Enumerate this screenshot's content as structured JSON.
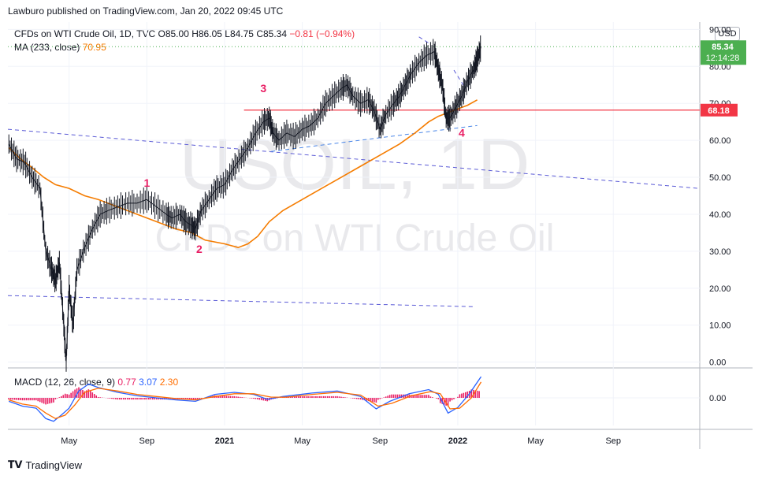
{
  "header": {
    "published": "Lawburo published on TradingView.com, Jan 20, 2022 09:45 UTC"
  },
  "legend": {
    "symbol": "CFDs on WTI Crude Oil, 1D, TVC",
    "o": "O85.00",
    "h": "H86.05",
    "l": "L84.75",
    "c": "C85.34",
    "change": "−0.81 (−0.94%)",
    "ma_label": "MA (233, close)",
    "ma_value": "70.95",
    "macd_label": "MACD (12, 26, close, 9)",
    "macd_v1": "0.77",
    "macd_v2": "3.07",
    "macd_v3": "2.30"
  },
  "currency": "USD",
  "footer": {
    "brand": "TradingView"
  },
  "colors": {
    "price": "#131722",
    "ma": "#f57c00",
    "hline": "#f23645",
    "trend": "#5a5ad6",
    "macd": "#2962ff",
    "signal": "#ff6d00",
    "hist": "#e91e63",
    "last": "#4caf50"
  },
  "chart_data": {
    "type": "line",
    "watermark": [
      "USOIL, 1D",
      "CFDs on WTI Crude Oil"
    ],
    "y_ticks": [
      "90.00",
      "80.00",
      "70.00",
      "60.00",
      "50.00",
      "40.00",
      "30.00",
      "20.00",
      "10.00",
      "0.00"
    ],
    "ylim": [
      -0.5,
      92
    ],
    "x_ticks": [
      "May",
      "Sep",
      "2021",
      "May",
      "Sep",
      "2022",
      "May",
      "Sep"
    ],
    "x_tick_months": [
      4,
      8,
      12,
      16,
      20,
      24,
      28,
      32
    ],
    "xlim": [
      0.85,
      36.45
    ],
    "last_price": {
      "value": 85.34,
      "label": "85.34",
      "countdown": "12:14:28"
    },
    "hline": {
      "value": 68.18,
      "label": "68.18"
    },
    "price_series": [
      [
        0.9,
        59
      ],
      [
        1.3,
        55
      ],
      [
        1.7,
        54
      ],
      [
        2.1,
        50
      ],
      [
        2.5,
        47
      ],
      [
        2.8,
        30
      ],
      [
        3.1,
        25
      ],
      [
        3.3,
        22
      ],
      [
        3.5,
        27
      ],
      [
        3.7,
        12
      ],
      [
        3.85,
        0
      ],
      [
        4.0,
        20
      ],
      [
        4.2,
        10
      ],
      [
        4.4,
        25
      ],
      [
        4.8,
        31
      ],
      [
        5.2,
        36
      ],
      [
        5.6,
        40
      ],
      [
        6.0,
        41
      ],
      [
        6.5,
        42
      ],
      [
        7.0,
        43
      ],
      [
        7.5,
        43
      ],
      [
        8.0,
        44
      ],
      [
        8.5,
        42
      ],
      [
        9.0,
        40
      ],
      [
        9.3,
        39
      ],
      [
        9.7,
        40
      ],
      [
        10.0,
        38
      ],
      [
        10.3,
        37
      ],
      [
        10.5,
        36
      ],
      [
        10.8,
        41
      ],
      [
        11.2,
        44
      ],
      [
        11.6,
        47
      ],
      [
        12.0,
        48
      ],
      [
        12.4,
        52
      ],
      [
        12.8,
        55
      ],
      [
        13.2,
        58
      ],
      [
        13.6,
        62
      ],
      [
        14.0,
        65
      ],
      [
        14.3,
        66
      ],
      [
        14.5,
        62
      ],
      [
        14.8,
        60
      ],
      [
        15.2,
        62
      ],
      [
        15.6,
        61
      ],
      [
        16.0,
        63
      ],
      [
        16.4,
        64
      ],
      [
        16.8,
        66
      ],
      [
        17.2,
        70
      ],
      [
        17.6,
        72
      ],
      [
        18.0,
        74
      ],
      [
        18.3,
        75
      ],
      [
        18.6,
        72
      ],
      [
        19.0,
        70
      ],
      [
        19.4,
        71
      ],
      [
        19.7,
        68
      ],
      [
        20.0,
        63
      ],
      [
        20.3,
        67
      ],
      [
        20.7,
        70
      ],
      [
        21.0,
        72
      ],
      [
        21.3,
        75
      ],
      [
        21.6,
        78
      ],
      [
        22.0,
        81
      ],
      [
        22.4,
        83
      ],
      [
        22.8,
        84
      ],
      [
        23.0,
        79
      ],
      [
        23.2,
        75
      ],
      [
        23.4,
        66
      ],
      [
        23.6,
        66
      ],
      [
        23.9,
        69
      ],
      [
        24.2,
        72
      ],
      [
        24.5,
        76
      ],
      [
        24.8,
        79
      ],
      [
        25.0,
        82
      ],
      [
        25.2,
        85.34
      ]
    ],
    "ma_series": [
      [
        0.9,
        58
      ],
      [
        1.5,
        55
      ],
      [
        2.0,
        53
      ],
      [
        2.7,
        50
      ],
      [
        3.3,
        48
      ],
      [
        4.0,
        47
      ],
      [
        4.8,
        45
      ],
      [
        5.5,
        44
      ],
      [
        6.5,
        42
      ],
      [
        7.5,
        40
      ],
      [
        8.5,
        38
      ],
      [
        9.5,
        36
      ],
      [
        10.3,
        35
      ],
      [
        11.0,
        33
      ],
      [
        12.0,
        32
      ],
      [
        12.7,
        31
      ],
      [
        13.2,
        32
      ],
      [
        13.7,
        34
      ],
      [
        14.3,
        38
      ],
      [
        15.0,
        41
      ],
      [
        16.0,
        44
      ],
      [
        17.0,
        47
      ],
      [
        18.0,
        50
      ],
      [
        19.0,
        53
      ],
      [
        20.0,
        56
      ],
      [
        21.0,
        59
      ],
      [
        21.8,
        62
      ],
      [
        22.5,
        65
      ],
      [
        23.0,
        66.5
      ],
      [
        23.5,
        67.5
      ],
      [
        24.0,
        68.5
      ],
      [
        24.5,
        69.5
      ],
      [
        25.0,
        70.95
      ]
    ],
    "trend_lines": [
      {
        "from": [
          0.85,
          63
        ],
        "to": [
          36.4,
          47
        ]
      },
      {
        "from": [
          0.85,
          18
        ],
        "to": [
          24.8,
          15
        ]
      },
      {
        "from": [
          14.4,
          57
        ],
        "to": [
          25.0,
          64
        ]
      },
      {
        "from": [
          22.0,
          88
        ],
        "to": [
          22.6,
          86
        ]
      },
      {
        "from": [
          23.8,
          79
        ],
        "to": [
          24.4,
          74
        ]
      }
    ],
    "hline_range": [
      13.0,
      36.45
    ],
    "wave_labels": [
      {
        "text": "1",
        "x": 8.0,
        "y": 47.5
      },
      {
        "text": "2",
        "x": 10.7,
        "y": 29.5
      },
      {
        "text": "3",
        "x": 14.0,
        "y": 73
      },
      {
        "text": "4",
        "x": 24.2,
        "y": 61
      }
    ],
    "macd": {
      "ylim": [
        -4,
        4
      ],
      "y_ticks": [
        "0.00"
      ],
      "macd_series": [
        [
          0.9,
          -0.5
        ],
        [
          1.6,
          -1.2
        ],
        [
          2.3,
          -1.5
        ],
        [
          2.8,
          -3
        ],
        [
          3.2,
          -3.4
        ],
        [
          3.6,
          -2.5
        ],
        [
          4.0,
          -1.5
        ],
        [
          4.5,
          1
        ],
        [
          5.0,
          2
        ],
        [
          5.5,
          1.5
        ],
        [
          6.5,
          0.8
        ],
        [
          7.5,
          0.3
        ],
        [
          8.5,
          0
        ],
        [
          9.5,
          -0.3
        ],
        [
          10.5,
          -0.5
        ],
        [
          11.5,
          0.5
        ],
        [
          12.5,
          0.8
        ],
        [
          13.5,
          0.5
        ],
        [
          14.2,
          -0.2
        ],
        [
          15.0,
          0.2
        ],
        [
          16.5,
          0.7
        ],
        [
          17.8,
          1
        ],
        [
          19.0,
          0.2
        ],
        [
          19.8,
          -1.6
        ],
        [
          20.5,
          -0.5
        ],
        [
          21.5,
          0.6
        ],
        [
          22.5,
          1.2
        ],
        [
          23.0,
          0.5
        ],
        [
          23.5,
          -2.2
        ],
        [
          24.0,
          -1.4
        ],
        [
          24.6,
          0.6
        ],
        [
          25.2,
          3.07
        ]
      ],
      "signal_series": [
        [
          0.9,
          -0.3
        ],
        [
          1.6,
          -0.9
        ],
        [
          2.3,
          -1.2
        ],
        [
          2.8,
          -2.2
        ],
        [
          3.3,
          -3
        ],
        [
          3.8,
          -2.5
        ],
        [
          4.3,
          -1
        ],
        [
          4.8,
          0.8
        ],
        [
          5.5,
          1.4
        ],
        [
          6.5,
          1
        ],
        [
          7.5,
          0.5
        ],
        [
          8.5,
          0.2
        ],
        [
          9.5,
          -0.1
        ],
        [
          10.5,
          -0.3
        ],
        [
          11.5,
          0.2
        ],
        [
          12.5,
          0.6
        ],
        [
          13.5,
          0.6
        ],
        [
          14.4,
          0.1
        ],
        [
          15.2,
          0.1
        ],
        [
          16.5,
          0.5
        ],
        [
          17.8,
          0.8
        ],
        [
          19.0,
          0.4
        ],
        [
          19.9,
          -1.2
        ],
        [
          20.6,
          -0.8
        ],
        [
          21.6,
          0.3
        ],
        [
          22.6,
          0.9
        ],
        [
          23.1,
          0.6
        ],
        [
          23.6,
          -1.6
        ],
        [
          24.1,
          -1.5
        ],
        [
          24.7,
          0
        ],
        [
          25.2,
          2.3
        ]
      ],
      "hist_range": [
        0.9,
        25.2
      ]
    }
  }
}
